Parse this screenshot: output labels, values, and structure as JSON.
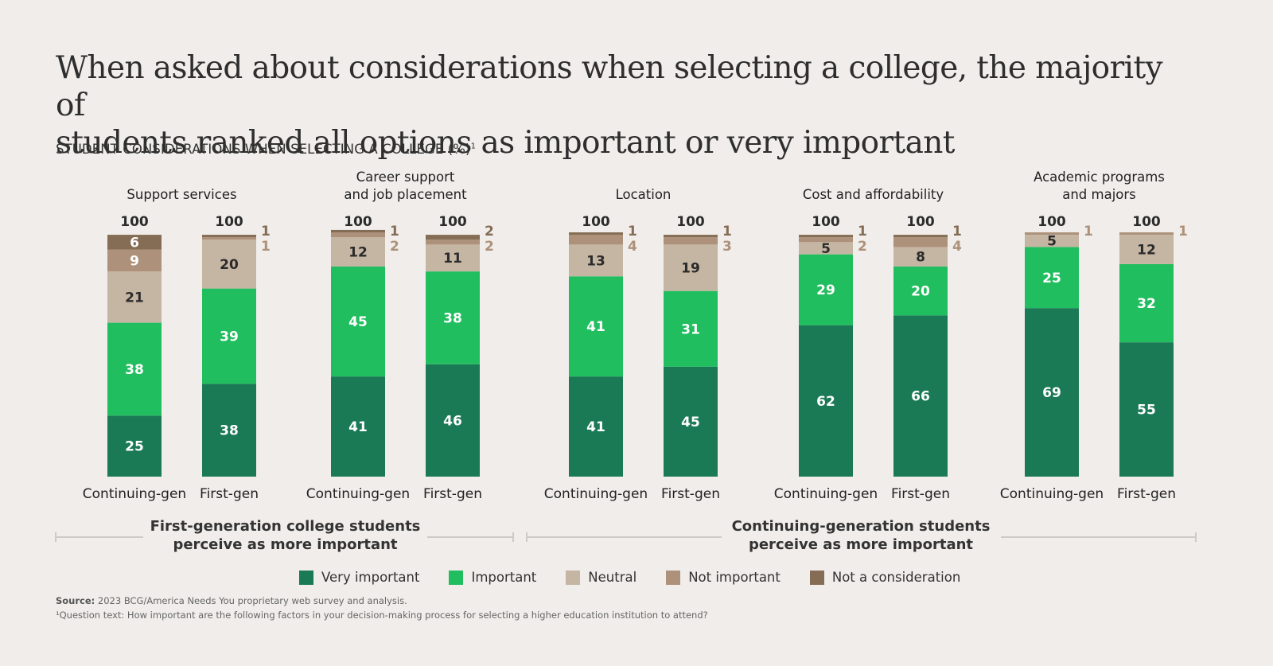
{
  "title_line1": "When asked about considerations when selecting a college, the majority of",
  "title_line2": "students ranked all options as important or very important",
  "subtitle": "STUDENT CONSIDERATIONS WHEN SELECTING A COLLEGE (%)",
  "subtitle_sup": "1",
  "colors": {
    "Very important": "#1a7a56",
    "Important": "#21be5f",
    "Neutral": "#c5b5a3",
    "Not important": "#ad917a",
    "Not a consideration": "#856d55"
  },
  "chart_data": {
    "type": "bar",
    "stacked": true,
    "unit": "%",
    "title": "STUDENT CONSIDERATIONS WHEN SELECTING A COLLEGE (%)",
    "legend": [
      "Very important",
      "Important",
      "Neutral",
      "Not important",
      "Not a consideration"
    ],
    "legend_position": "bottom",
    "ylim": [
      0,
      100
    ],
    "groups": [
      {
        "category": "Support services",
        "bars": [
          {
            "label": "Continuing-gen",
            "total": 100,
            "values": {
              "Very important": 25,
              "Important": 38,
              "Neutral": 21,
              "Not important": 9,
              "Not a consideration": 6
            }
          },
          {
            "label": "First-gen",
            "total": 100,
            "values": {
              "Very important": 38,
              "Important": 39,
              "Neutral": 20,
              "Not important": 1,
              "Not a consideration": 1
            }
          }
        ]
      },
      {
        "category": "Career support and job placement",
        "bars": [
          {
            "label": "Continuing-gen",
            "total": 100,
            "values": {
              "Very important": 41,
              "Important": 45,
              "Neutral": 12,
              "Not important": 2,
              "Not a consideration": 1
            }
          },
          {
            "label": "First-gen",
            "total": 100,
            "values": {
              "Very important": 46,
              "Important": 38,
              "Neutral": 11,
              "Not important": 2,
              "Not a consideration": 2
            }
          }
        ]
      },
      {
        "category": "Location",
        "bars": [
          {
            "label": "Continuing-gen",
            "total": 100,
            "values": {
              "Very important": 41,
              "Important": 41,
              "Neutral": 13,
              "Not important": 4,
              "Not a consideration": 1
            }
          },
          {
            "label": "First-gen",
            "total": 100,
            "values": {
              "Very important": 45,
              "Important": 31,
              "Neutral": 19,
              "Not important": 3,
              "Not a consideration": 1
            }
          }
        ]
      },
      {
        "category": "Cost and affordability",
        "bars": [
          {
            "label": "Continuing-gen",
            "total": 100,
            "values": {
              "Very important": 62,
              "Important": 29,
              "Neutral": 5,
              "Not important": 2,
              "Not a consideration": 1
            }
          },
          {
            "label": "First-gen",
            "total": 100,
            "values": {
              "Very important": 66,
              "Important": 20,
              "Neutral": 8,
              "Not important": 4,
              "Not a consideration": 1
            }
          }
        ]
      },
      {
        "category": "Academic programs and majors",
        "bars": [
          {
            "label": "Continuing-gen",
            "total": 100,
            "values": {
              "Very important": 69,
              "Important": 25,
              "Neutral": 5,
              "Not important": 1,
              "Not a consideration": 0
            }
          },
          {
            "label": "First-gen",
            "total": 100,
            "values": {
              "Very important": 55,
              "Important": 32,
              "Neutral": 12,
              "Not important": 1,
              "Not a consideration": 0
            }
          }
        ]
      }
    ],
    "category_title_lines": [
      [
        "Support services"
      ],
      [
        "Career support",
        "and job placement"
      ],
      [
        "Location"
      ],
      [
        "Cost and affordability"
      ],
      [
        "Academic programs",
        "and majors"
      ]
    ],
    "annotations": [
      {
        "text": "First-generation college students perceive as more important",
        "spans": [
          "Support services",
          "Career support and job placement"
        ]
      },
      {
        "text": "Continuing-generation students perceive as more important",
        "spans": [
          "Location",
          "Cost and affordability",
          "Academic programs and majors"
        ]
      }
    ]
  },
  "brackets": {
    "first_gen_line1": "First-generation college students",
    "first_gen_line2": "perceive as more important",
    "cont_gen_line1": "Continuing-generation students",
    "cont_gen_line2": "perceive as more important"
  },
  "legend_items": [
    "Very important",
    "Important",
    "Neutral",
    "Not important",
    "Not a consideration"
  ],
  "source_label": "Source:",
  "source_text": "2023 BCG/America Needs You proprietary web survey and analysis.",
  "footnote": "¹Question text: How important are the following factors in your decision-making process for selecting a higher education institution to attend?"
}
